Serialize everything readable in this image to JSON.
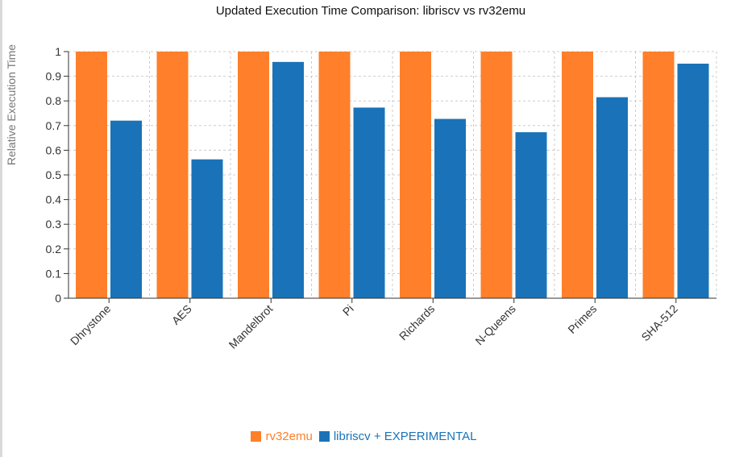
{
  "chart_data": {
    "type": "bar",
    "title": "Updated Execution Time Comparison: libriscv vs rv32emu",
    "xlabel": "",
    "ylabel": "Relative Execution Time",
    "categories": [
      "Dhrystone",
      "AES",
      "Mandelbrot",
      "Pi",
      "Richards",
      "N-Queens",
      "Primes",
      "SHA-512"
    ],
    "series": [
      {
        "name": "rv32emu",
        "color": "#ff7f2a",
        "values": [
          1,
          1,
          1,
          1,
          1,
          1,
          1,
          1
        ]
      },
      {
        "name": "libriscv + EXPERIMENTAL",
        "color": "#1a73b8",
        "values": [
          0.72,
          0.563,
          0.958,
          0.773,
          0.727,
          0.673,
          0.815,
          0.951
        ]
      }
    ],
    "ylim": [
      0,
      1
    ],
    "yticks": [
      "0",
      "0.1",
      "0.2",
      "0.3",
      "0.4",
      "0.5",
      "0.6",
      "0.7",
      "0.8",
      "0.9",
      "1"
    ],
    "grid": true,
    "legend_position": "bottom-center"
  }
}
